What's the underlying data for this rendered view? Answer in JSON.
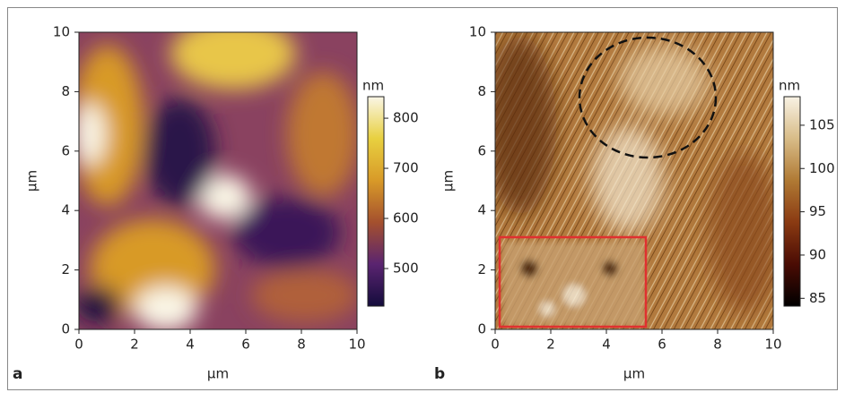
{
  "chart_data": [
    {
      "type": "image",
      "panel_label": "a",
      "xlabel": "µm",
      "ylabel": "µm",
      "xlim": [
        0,
        10
      ],
      "ylim": [
        0,
        10
      ],
      "xticks": [
        0,
        2,
        4,
        6,
        8,
        10
      ],
      "yticks": [
        0,
        2,
        4,
        6,
        8,
        10
      ],
      "colorbar": {
        "label": "nm",
        "lim": [
          425,
          843
        ],
        "ticks": [
          500,
          600,
          700,
          800
        ],
        "colormap": [
          "#140c3c",
          "#5a2470",
          "#a4502e",
          "#d89a28",
          "#e8d040",
          "#faf6e6"
        ]
      }
    },
    {
      "type": "image",
      "panel_label": "b",
      "xlabel": "µm",
      "ylabel": "µm",
      "xlim": [
        0,
        10
      ],
      "ylim": [
        0,
        10
      ],
      "xticks": [
        0,
        2,
        4,
        6,
        8,
        10
      ],
      "yticks": [
        0,
        2,
        4,
        6,
        8,
        10
      ],
      "colorbar": {
        "label": "nm",
        "lim": [
          84.1,
          108.3
        ],
        "ticks": [
          85,
          90,
          95,
          100,
          105
        ],
        "colormap": [
          "#000000",
          "#4a0c04",
          "#8a3a12",
          "#b07a34",
          "#d8bc88",
          "#f8f2e4"
        ]
      }
    }
  ]
}
